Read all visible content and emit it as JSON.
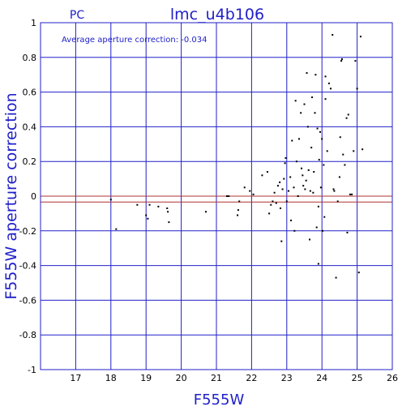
{
  "chart_data": {
    "type": "scatter",
    "title": "lmc_u4b106",
    "subtitle": "PC",
    "xlabel": "F555W",
    "ylabel": "F555W aperture correction",
    "annotation": "Average aperture correction:  -0.034",
    "xlim": [
      16,
      26
    ],
    "ylim": [
      -1,
      1
    ],
    "x_ticks": [
      "17",
      "18",
      "19",
      "20",
      "21",
      "22",
      "23",
      "24",
      "25",
      "26"
    ],
    "x_tick_values": [
      17,
      18,
      19,
      20,
      21,
      22,
      23,
      24,
      25,
      26
    ],
    "y_ticks": [
      "1",
      "0.8",
      "0.6",
      "0.4",
      "0.2",
      "0",
      "-0.2",
      "-0.4",
      "-0.6",
      "-0.8",
      "-1"
    ],
    "y_tick_values": [
      1,
      0.8,
      0.6,
      0.4,
      0.2,
      0,
      -0.2,
      -0.4,
      -0.6,
      -0.8,
      -1
    ],
    "reference_lines": [
      0,
      -0.034
    ],
    "grid": true,
    "point_color": "#000000",
    "axis_color": "#2020c8",
    "reference_color": "#b03030",
    "points": [
      [
        18.0,
        -0.02
      ],
      [
        18.15,
        -0.19
      ],
      [
        18.75,
        -0.05
      ],
      [
        19.0,
        -0.11
      ],
      [
        19.05,
        -0.13
      ],
      [
        19.1,
        -0.05
      ],
      [
        19.35,
        -0.06
      ],
      [
        19.6,
        -0.07
      ],
      [
        19.62,
        -0.09
      ],
      [
        19.65,
        -0.15
      ],
      [
        20.7,
        -0.09
      ],
      [
        21.3,
        0.0
      ],
      [
        21.35,
        0.0
      ],
      [
        21.6,
        -0.11
      ],
      [
        21.62,
        -0.08
      ],
      [
        21.65,
        -0.03
      ],
      [
        21.8,
        0.05
      ],
      [
        21.95,
        0.03
      ],
      [
        22.05,
        0.01
      ],
      [
        22.3,
        0.12
      ],
      [
        22.45,
        0.14
      ],
      [
        22.5,
        -0.1
      ],
      [
        22.55,
        -0.05
      ],
      [
        22.6,
        -0.03
      ],
      [
        22.65,
        0.02
      ],
      [
        22.7,
        -0.04
      ],
      [
        22.75,
        0.06
      ],
      [
        22.8,
        0.08
      ],
      [
        22.82,
        -0.07
      ],
      [
        22.85,
        -0.26
      ],
      [
        22.88,
        0.04
      ],
      [
        22.92,
        0.1
      ],
      [
        22.95,
        0.19
      ],
      [
        22.97,
        0.22
      ],
      [
        23.0,
        -0.03
      ],
      [
        23.05,
        0.03
      ],
      [
        23.1,
        0.11
      ],
      [
        23.12,
        -0.14
      ],
      [
        23.15,
        0.32
      ],
      [
        23.2,
        0.05
      ],
      [
        23.22,
        -0.2
      ],
      [
        23.25,
        0.55
      ],
      [
        23.28,
        0.2
      ],
      [
        23.32,
        0.0
      ],
      [
        23.35,
        0.33
      ],
      [
        23.4,
        0.48
      ],
      [
        23.42,
        0.16
      ],
      [
        23.45,
        0.12
      ],
      [
        23.47,
        0.06
      ],
      [
        23.5,
        0.53
      ],
      [
        23.52,
        0.04
      ],
      [
        23.55,
        0.09
      ],
      [
        23.57,
        0.71
      ],
      [
        23.6,
        0.4
      ],
      [
        23.62,
        0.15
      ],
      [
        23.65,
        -0.25
      ],
      [
        23.67,
        0.03
      ],
      [
        23.7,
        0.28
      ],
      [
        23.72,
        0.57
      ],
      [
        23.75,
        0.02
      ],
      [
        23.77,
        0.14
      ],
      [
        23.8,
        0.48
      ],
      [
        23.82,
        0.7
      ],
      [
        23.85,
        -0.18
      ],
      [
        23.87,
        0.39
      ],
      [
        23.9,
        -0.06
      ],
      [
        23.92,
        0.21
      ],
      [
        23.95,
        0.37
      ],
      [
        23.97,
        0.05
      ],
      [
        24.0,
        0.33
      ],
      [
        24.02,
        -0.2
      ],
      [
        24.05,
        0.18
      ],
      [
        24.07,
        -0.12
      ],
      [
        24.1,
        0.56
      ],
      [
        24.15,
        0.26
      ],
      [
        24.2,
        0.65
      ],
      [
        24.25,
        0.62
      ],
      [
        24.3,
        0.93
      ],
      [
        24.33,
        0.04
      ],
      [
        24.35,
        0.03
      ],
      [
        24.4,
        -0.47
      ],
      [
        24.45,
        -0.03
      ],
      [
        24.5,
        0.11
      ],
      [
        24.52,
        0.34
      ],
      [
        24.55,
        0.78
      ],
      [
        24.57,
        0.79
      ],
      [
        24.6,
        0.24
      ],
      [
        24.65,
        0.18
      ],
      [
        24.7,
        0.45
      ],
      [
        24.72,
        -0.21
      ],
      [
        24.75,
        0.47
      ],
      [
        24.8,
        0.01
      ],
      [
        24.85,
        0.01
      ],
      [
        24.9,
        0.26
      ],
      [
        24.95,
        0.78
      ],
      [
        25.0,
        0.62
      ],
      [
        25.05,
        -0.44
      ],
      [
        25.1,
        0.92
      ],
      [
        25.15,
        0.27
      ],
      [
        23.9,
        -0.39
      ],
      [
        24.1,
        0.69
      ]
    ]
  }
}
